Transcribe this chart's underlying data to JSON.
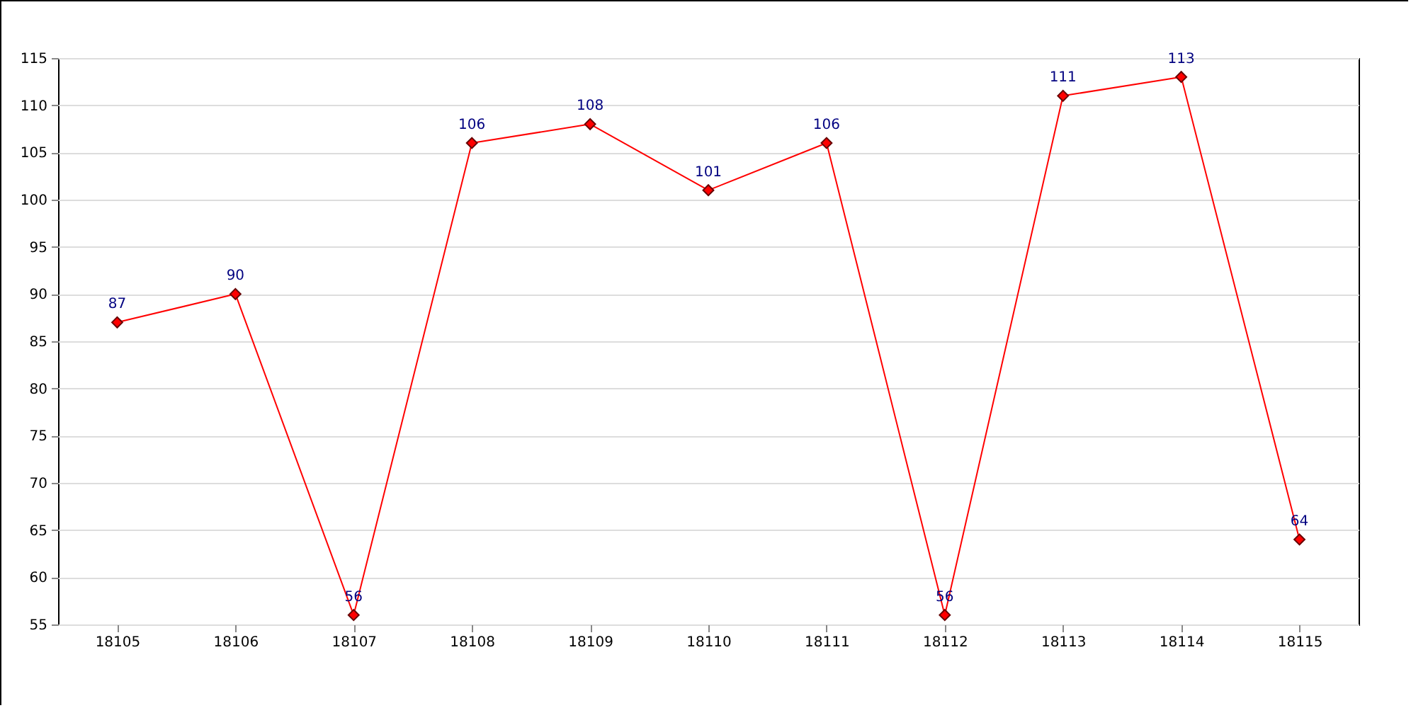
{
  "chart_data": {
    "type": "line",
    "categories": [
      "18105",
      "18106",
      "18107",
      "18108",
      "18109",
      "18110",
      "18111",
      "18112",
      "18113",
      "18114",
      "18115"
    ],
    "series": [
      {
        "color": "#ff0000",
        "values": [
          87,
          90,
          56,
          106,
          108,
          101,
          106,
          56,
          111,
          113,
          64
        ]
      }
    ],
    "ylim": [
      55,
      115
    ],
    "yticks": [
      55,
      60,
      65,
      70,
      75,
      80,
      85,
      90,
      95,
      100,
      105,
      110,
      115
    ],
    "grid": "y",
    "marker": "diamond",
    "line_style": "solid",
    "data_labels": true
  }
}
